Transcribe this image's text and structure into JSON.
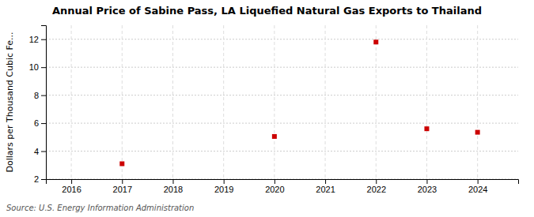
{
  "chart_data": {
    "type": "scatter",
    "title": "Annual Price of Sabine Pass, LA Liquefied Natural Gas Exports to Thailand",
    "ylabel": "Dollars per Thousand Cubic Fe...",
    "source": "Source: U.S. Energy Information Administration",
    "x": [
      2017,
      2020,
      2022,
      2023,
      2024
    ],
    "values": [
      3.1,
      5.05,
      11.8,
      5.6,
      5.35
    ],
    "color": "#cc0000",
    "marker": "square",
    "xlim": [
      2015.5,
      2024.8
    ],
    "ylim": [
      2,
      13
    ],
    "xticks": [
      2016,
      2017,
      2018,
      2019,
      2020,
      2021,
      2022,
      2023,
      2024
    ],
    "yticks": [
      2,
      4,
      6,
      8,
      10,
      12
    ],
    "grid": true
  }
}
